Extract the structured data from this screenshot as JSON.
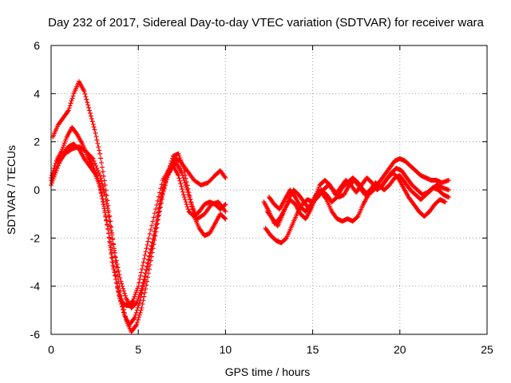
{
  "chart_data": {
    "type": "scatter",
    "title": "Day 232 of 2017, Sidereal Day-to-day VTEC variation (SDTVAR) for receiver wara",
    "xlabel": "GPS time / hours",
    "ylabel": "SDTVAR / TECUs",
    "xlim": [
      0,
      25
    ],
    "ylim": [
      -6,
      6
    ],
    "x_ticks": [
      0,
      5,
      10,
      15,
      20,
      25
    ],
    "y_ticks": [
      -6,
      -4,
      -2,
      0,
      2,
      4,
      6
    ],
    "grid": true,
    "legend": "none",
    "marker": "plus",
    "color": "#ff0000",
    "series": [
      {
        "x": [
          0.0,
          0.3,
          0.7,
          1.0,
          1.3,
          1.6,
          1.9,
          2.2,
          2.5,
          2.8,
          3.0,
          3.3,
          3.5,
          3.8,
          4.0,
          4.3,
          4.5,
          4.7,
          5.0,
          5.3,
          5.6,
          6.0,
          6.4,
          6.8,
          7.1,
          7.4,
          7.8,
          8.2,
          8.6,
          9.0,
          9.4,
          9.7,
          10.0
        ],
        "y": [
          0.2,
          0.8,
          1.5,
          1.8,
          1.9,
          1.7,
          1.3,
          1.0,
          0.7,
          0.2,
          -0.6,
          -1.8,
          -3.0,
          -4.0,
          -4.6,
          -4.8,
          -4.8,
          -4.6,
          -4.0,
          -3.0,
          -2.0,
          -0.8,
          0.4,
          0.9,
          1.3,
          1.2,
          0.8,
          0.4,
          0.2,
          0.3,
          0.6,
          0.8,
          0.5
        ]
      },
      {
        "x": [
          0.0,
          0.3,
          0.6,
          0.9,
          1.2,
          1.5,
          1.8,
          2.1,
          2.4,
          2.7,
          3.0,
          3.3,
          3.6,
          3.9,
          4.2,
          4.5,
          4.8,
          5.1,
          5.4,
          5.7,
          6.0,
          6.3,
          6.6,
          6.9,
          7.2,
          7.5,
          7.8,
          8.1,
          8.4,
          8.8,
          9.2,
          9.6,
          10.0
        ],
        "y": [
          0.5,
          1.2,
          1.6,
          2.2,
          2.6,
          2.3,
          1.9,
          1.4,
          1.0,
          0.4,
          -0.5,
          -1.8,
          -3.2,
          -4.4,
          -5.2,
          -5.6,
          -5.3,
          -4.6,
          -3.6,
          -2.6,
          -1.6,
          -0.4,
          0.5,
          1.0,
          1.1,
          0.7,
          0.0,
          -0.7,
          -1.2,
          -1.0,
          -0.6,
          -0.5,
          -0.9
        ]
      },
      {
        "x": [
          0.1,
          0.4,
          0.7,
          1.0,
          1.3,
          1.6,
          1.9,
          2.2,
          2.5,
          2.8,
          3.1,
          3.4,
          3.7,
          4.0,
          4.3,
          4.6,
          4.9,
          5.2,
          5.5,
          5.8,
          6.1,
          6.4,
          6.7,
          7.0,
          7.3,
          7.6,
          7.9,
          8.2,
          8.5,
          8.8,
          9.1,
          9.4,
          9.7,
          10.0
        ],
        "y": [
          2.2,
          2.7,
          3.0,
          3.3,
          4.0,
          4.5,
          4.1,
          3.3,
          2.5,
          1.5,
          0.2,
          -1.3,
          -3.0,
          -4.4,
          -5.4,
          -5.9,
          -5.6,
          -4.9,
          -3.8,
          -2.6,
          -1.4,
          -0.2,
          0.7,
          1.4,
          1.5,
          0.9,
          -0.1,
          -1.1,
          -1.6,
          -1.9,
          -1.8,
          -1.4,
          -1.0,
          -1.2
        ]
      },
      {
        "x": [
          0.0,
          0.4,
          0.8,
          1.2,
          1.6,
          2.0,
          2.4,
          2.8,
          3.1,
          3.4,
          3.7,
          4.0,
          4.3,
          4.6,
          4.9,
          5.2,
          5.5,
          5.8,
          6.1,
          6.4,
          6.7,
          7.0,
          7.3,
          7.6,
          7.9,
          8.2,
          8.5,
          8.8,
          9.1,
          9.4,
          9.7,
          10.0
        ],
        "y": [
          0.4,
          1.1,
          1.5,
          1.7,
          1.8,
          1.6,
          1.3,
          0.6,
          -0.2,
          -1.5,
          -2.8,
          -3.8,
          -4.5,
          -4.9,
          -4.7,
          -4.1,
          -3.2,
          -2.2,
          -1.1,
          0.0,
          0.6,
          1.0,
          0.6,
          -0.2,
          -0.9,
          -1.1,
          -0.9,
          -0.6,
          -0.5,
          -0.6,
          -0.8,
          -0.6
        ]
      },
      {
        "x": [
          12.2,
          12.5,
          12.8,
          13.1,
          13.4,
          13.7,
          14.0,
          14.3,
          14.6,
          14.9,
          15.2,
          15.5,
          15.8,
          16.1,
          16.4,
          16.7,
          17.0,
          17.3,
          17.6,
          17.9,
          18.2,
          18.5,
          18.8,
          19.1,
          19.4,
          19.7,
          20.0,
          20.3,
          20.6,
          20.9,
          21.2,
          21.5,
          21.8,
          22.1,
          22.4,
          22.8
        ],
        "y": [
          -0.5,
          -0.9,
          -1.4,
          -1.2,
          -0.8,
          -0.4,
          -0.6,
          -1.0,
          -1.2,
          -0.8,
          -0.3,
          -0.1,
          -0.4,
          -0.9,
          -1.2,
          -1.3,
          -1.2,
          -1.3,
          -1.1,
          -0.6,
          -0.2,
          0.1,
          0.3,
          0.6,
          0.9,
          1.2,
          1.3,
          1.2,
          1.0,
          0.8,
          0.6,
          0.5,
          0.4,
          0.4,
          0.3,
          0.4
        ]
      },
      {
        "x": [
          12.3,
          12.6,
          12.9,
          13.2,
          13.5,
          13.8,
          14.1,
          14.4,
          14.7,
          15.0,
          15.3,
          15.6,
          15.9,
          16.2,
          16.5,
          16.8,
          17.1,
          17.4,
          17.7,
          18.0,
          18.3,
          18.6,
          18.9,
          19.2,
          19.5,
          19.8,
          20.1,
          20.4,
          20.7,
          21.0,
          21.3,
          21.6,
          21.9,
          22.2,
          22.5,
          22.8
        ],
        "y": [
          -1.6,
          -1.9,
          -2.1,
          -2.2,
          -2.0,
          -1.5,
          -1.0,
          -0.6,
          -0.4,
          -0.5,
          -0.3,
          0.0,
          0.2,
          0.0,
          -0.3,
          -0.2,
          0.2,
          0.4,
          0.1,
          -0.2,
          0.0,
          0.3,
          0.1,
          0.4,
          0.7,
          0.9,
          0.8,
          0.5,
          0.2,
          0.0,
          -0.2,
          -0.1,
          0.1,
          0.0,
          -0.2,
          -0.3
        ]
      },
      {
        "x": [
          12.4,
          12.7,
          13.0,
          13.3,
          13.6,
          13.9,
          14.2,
          14.5,
          14.8,
          15.1,
          15.4,
          15.7,
          16.0,
          16.3,
          16.6,
          16.9,
          17.2,
          17.5,
          17.8,
          18.1,
          18.4,
          18.7,
          19.0,
          19.3,
          19.6,
          19.9,
          20.2,
          20.5,
          20.8,
          21.1,
          21.4,
          21.7,
          22.0,
          22.3,
          22.6
        ],
        "y": [
          -0.9,
          -1.2,
          -1.5,
          -1.0,
          -0.4,
          0.0,
          -0.2,
          -0.5,
          -0.8,
          -0.4,
          0.2,
          0.4,
          0.2,
          -0.2,
          0.1,
          0.4,
          0.2,
          -0.1,
          0.2,
          0.5,
          0.3,
          0.0,
          0.2,
          0.5,
          0.7,
          0.5,
          0.1,
          -0.3,
          -0.6,
          -0.9,
          -1.1,
          -0.9,
          -0.6,
          -0.4,
          -0.5
        ]
      },
      {
        "x": [
          12.5,
          12.8,
          13.1,
          13.4,
          13.7,
          14.0,
          14.3,
          14.6,
          14.9,
          15.2,
          15.5,
          15.8,
          16.1,
          16.4,
          16.7,
          17.0,
          17.3,
          17.6,
          17.9,
          18.2,
          18.5,
          18.8,
          19.1,
          19.4,
          19.7,
          20.0,
          20.3,
          20.6,
          20.9,
          21.2,
          21.5,
          21.8,
          22.1,
          22.4,
          22.8
        ],
        "y": [
          -0.3,
          -0.6,
          -0.8,
          -0.4,
          0.0,
          -0.3,
          -0.7,
          -0.9,
          -0.6,
          -0.2,
          0.0,
          -0.2,
          -0.5,
          -0.3,
          0.1,
          0.3,
          0.5,
          0.3,
          0.0,
          -0.2,
          0.0,
          0.2,
          0.0,
          0.2,
          0.5,
          0.6,
          0.3,
          0.0,
          -0.2,
          -0.4,
          -0.2,
          0.0,
          0.2,
          0.1,
          0.0
        ]
      }
    ]
  }
}
